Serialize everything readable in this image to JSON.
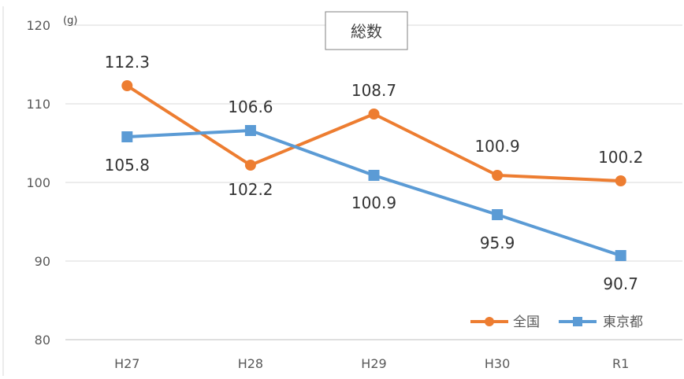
{
  "chart_data": {
    "type": "line",
    "title": "総数",
    "unit_label": "(g)",
    "categories": [
      "H27",
      "H28",
      "H29",
      "H30",
      "R1"
    ],
    "ylim": [
      80,
      120
    ],
    "yticks": [
      80,
      90,
      100,
      110,
      120
    ],
    "grid": true,
    "legend_position": "bottom-right",
    "series": [
      {
        "name": "全国",
        "color": "#ED7D31",
        "marker": "circle",
        "values": [
          112.3,
          102.2,
          108.7,
          100.9,
          100.2
        ],
        "labels": [
          "112.3",
          "102.2",
          "108.7",
          "100.9",
          "100.2"
        ]
      },
      {
        "name": "東京都",
        "color": "#5B9BD5",
        "marker": "square",
        "values": [
          105.8,
          106.6,
          100.9,
          95.9,
          90.7
        ],
        "labels": [
          "105.8",
          "106.6",
          "100.9",
          "95.9",
          "90.7"
        ]
      }
    ]
  }
}
